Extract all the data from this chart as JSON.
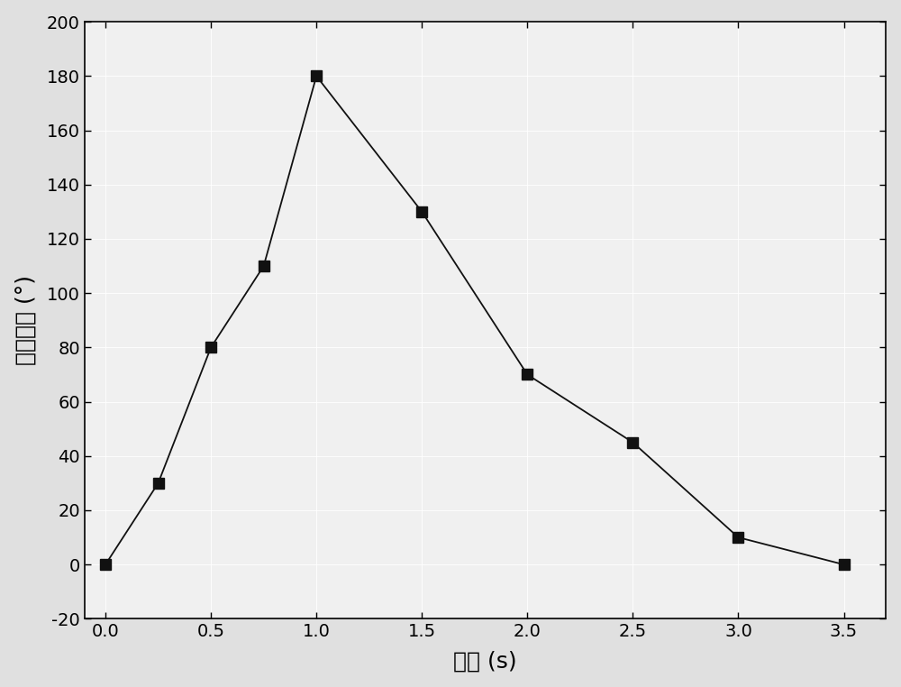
{
  "x": [
    0.0,
    0.25,
    0.5,
    0.75,
    1.0,
    1.5,
    2.0,
    2.5,
    3.0,
    3.5
  ],
  "y": [
    0,
    30,
    80,
    110,
    180,
    130,
    70,
    45,
    10,
    0
  ],
  "xlabel": "时间 (s)",
  "ylabel": "弯曲角度 (°)",
  "xlim": [
    -0.1,
    3.7
  ],
  "ylim": [
    -20,
    200
  ],
  "xticks": [
    0.0,
    0.5,
    1.0,
    1.5,
    2.0,
    2.5,
    3.0,
    3.5
  ],
  "yticks": [
    -20,
    0,
    20,
    40,
    60,
    80,
    100,
    120,
    140,
    160,
    180,
    200
  ],
  "marker": "s",
  "marker_color": "#111111",
  "line_color": "#111111",
  "marker_size": 8,
  "line_width": 1.3,
  "plot_bg_color": "#f0f0f0",
  "fig_bg_color": "#e0e0e0",
  "grid_color": "#ffffff",
  "grid_linewidth": 0.6
}
